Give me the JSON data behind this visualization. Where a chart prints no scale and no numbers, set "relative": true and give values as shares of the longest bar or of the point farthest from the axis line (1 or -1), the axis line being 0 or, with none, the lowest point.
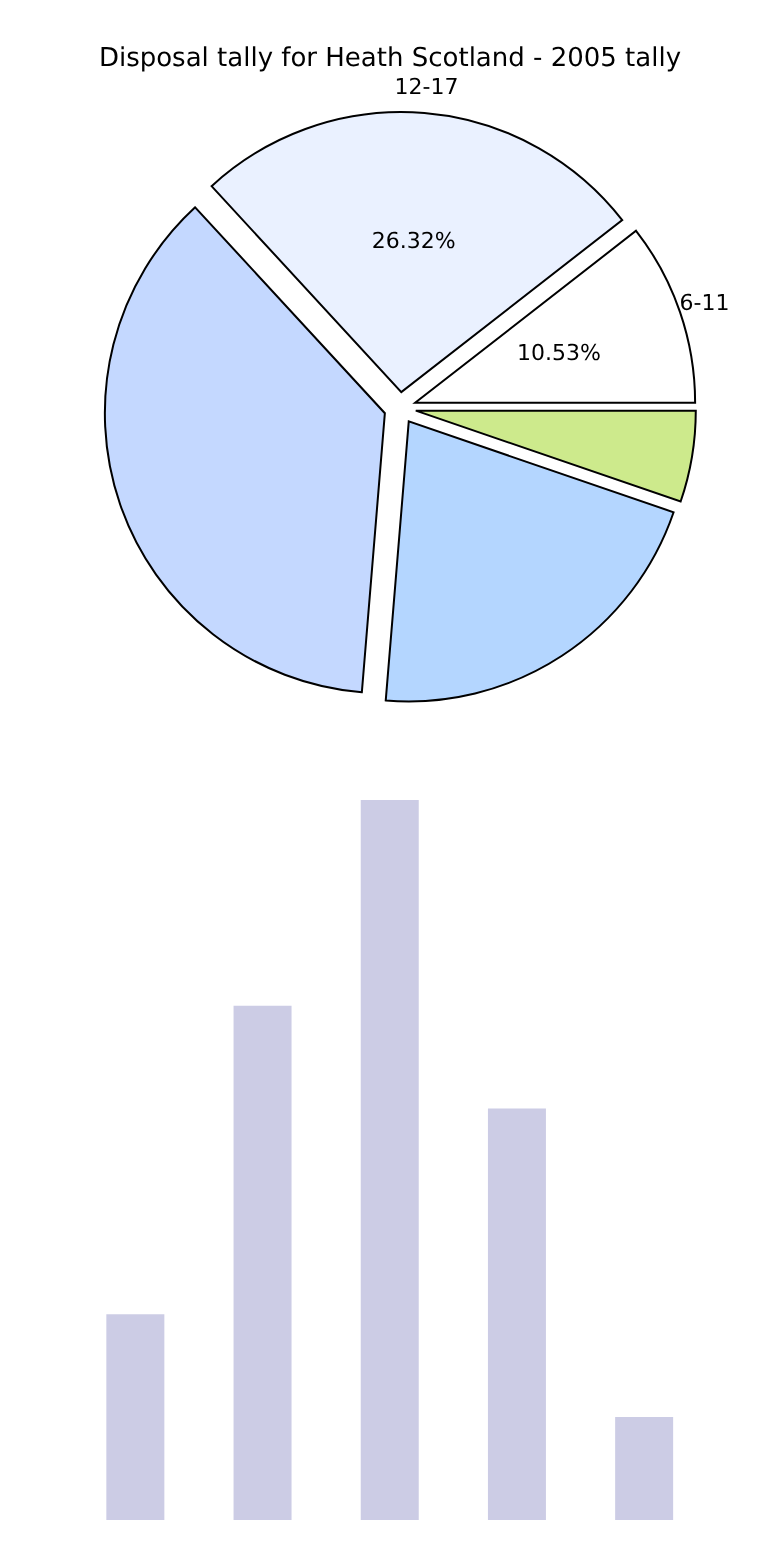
{
  "chart_data": [
    {
      "type": "pie",
      "title": "Disposal tally for Heath Scotland - 2005 tally",
      "categories": [
        "6-11",
        "12-17",
        null,
        null,
        null
      ],
      "values": [
        10.53,
        26.32,
        36.84,
        21.05,
        5.26
      ],
      "colors": [
        "#ffffff",
        "#eaf1ff",
        "#c4d8ff",
        "#b4d6ff",
        "#cdea8c"
      ],
      "value_labels": [
        "10.53%",
        "26.32%",
        null,
        null,
        null
      ]
    },
    {
      "type": "bar",
      "relative": true,
      "categories": [
        null,
        null,
        null,
        null,
        null
      ],
      "values": [
        0.2857,
        0.7143,
        1,
        0.5714,
        0.1429
      ],
      "color": "#cccce5"
    }
  ]
}
